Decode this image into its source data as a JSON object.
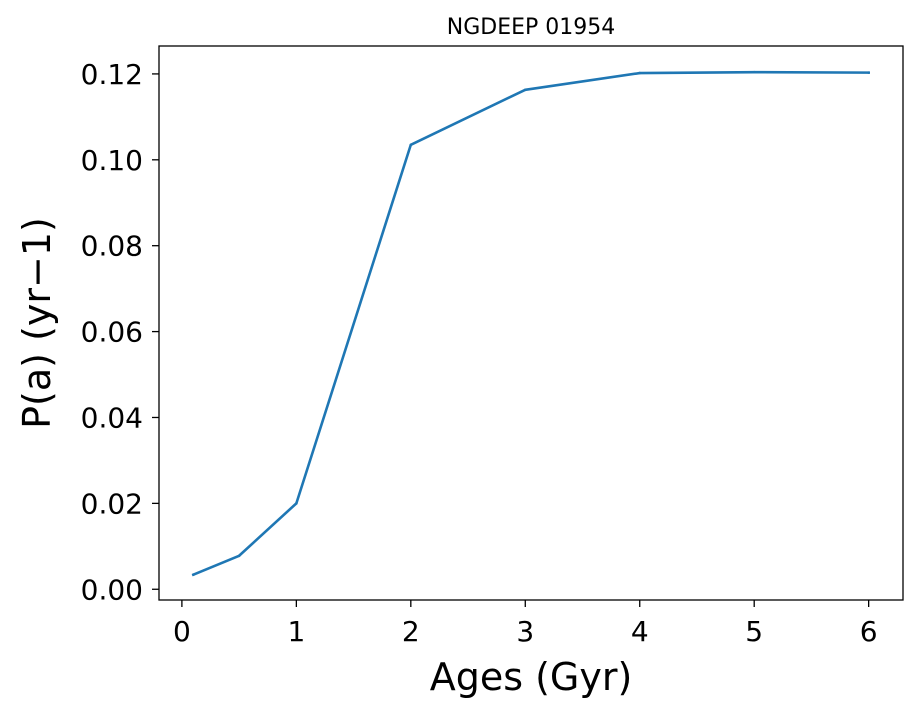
{
  "chart_data": {
    "type": "line",
    "title": "NGDEEP 01954",
    "xlabel": "Ages (Gyr)",
    "ylabel": "P(a) (yr−1)",
    "xlim": [
      -0.2,
      6.3
    ],
    "ylim": [
      -0.0025,
      0.1265
    ],
    "xticks": [
      0,
      1,
      2,
      3,
      4,
      5,
      6
    ],
    "xtick_labels": [
      "0",
      "1",
      "2",
      "3",
      "4",
      "5",
      "6"
    ],
    "yticks": [
      0.0,
      0.02,
      0.04,
      0.06,
      0.08,
      0.1,
      0.12
    ],
    "ytick_labels": [
      "0.00",
      "0.02",
      "0.04",
      "0.06",
      "0.08",
      "0.10",
      "0.12"
    ],
    "grid": false,
    "series": [
      {
        "color": "#1f77b4",
        "x": [
          0.1,
          0.5,
          1.0,
          2.0,
          3.0,
          4.0,
          5.0,
          6.0
        ],
        "y": [
          0.0034,
          0.0078,
          0.02,
          0.1035,
          0.1163,
          0.1202,
          0.1204,
          0.1203
        ]
      }
    ]
  }
}
